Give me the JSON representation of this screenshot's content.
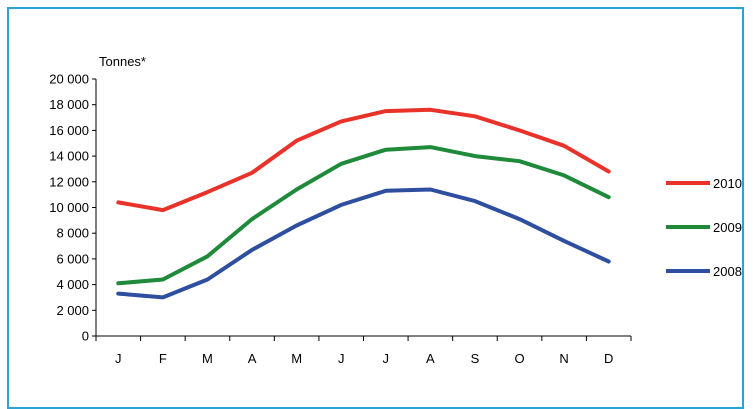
{
  "chart_data": {
    "type": "line",
    "title": "",
    "xlabel": "",
    "ylabel": "Tonnes*",
    "categories": [
      "J",
      "F",
      "M",
      "A",
      "M",
      "J",
      "J",
      "A",
      "S",
      "O",
      "N",
      "D"
    ],
    "ylim": [
      0,
      20000
    ],
    "yticks": [
      "0",
      "2 000",
      "4 000",
      "6 000",
      "8 000",
      "10 000",
      "12 000",
      "14 000",
      "16 000",
      "18 000",
      "20 000"
    ],
    "grid": false,
    "legend_position": "right",
    "series": [
      {
        "name": "2010",
        "color": "#e8322a",
        "values": [
          10400,
          9800,
          11200,
          12700,
          15200,
          16700,
          17500,
          17600,
          17100,
          16000,
          14800,
          12800
        ]
      },
      {
        "name": "2009",
        "color": "#1e8a3a",
        "values": [
          4100,
          4400,
          6200,
          9100,
          11400,
          13400,
          14500,
          14700,
          14000,
          13600,
          12500,
          10800
        ]
      },
      {
        "name": "2008",
        "color": "#2e4f9f",
        "values": [
          3300,
          3000,
          4400,
          6700,
          8600,
          10200,
          11300,
          11400,
          10500,
          9100,
          7400,
          5800
        ]
      }
    ]
  }
}
